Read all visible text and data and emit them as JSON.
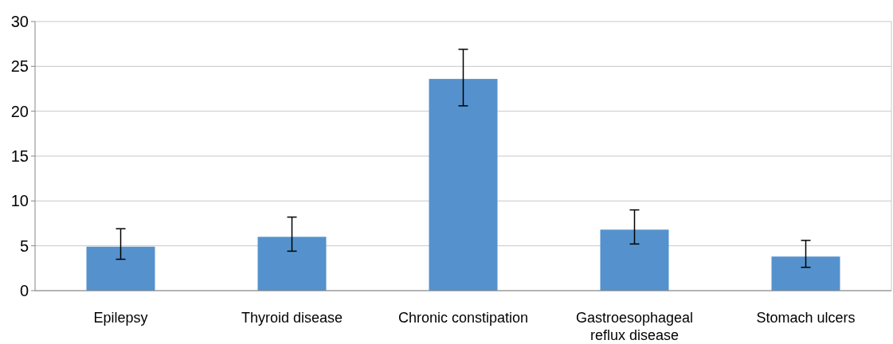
{
  "chart_data": {
    "type": "bar",
    "categories": [
      "Epilepsy",
      "Thyroid disease",
      "Chronic constipation",
      "Gastroesophageal reflux disease",
      "Stomach ulcers"
    ],
    "values": [
      4.9,
      6.0,
      23.6,
      6.8,
      3.8
    ],
    "errors": [
      [
        3.5,
        6.9
      ],
      [
        4.4,
        8.2
      ],
      [
        20.6,
        26.9
      ],
      [
        5.2,
        9.0
      ],
      [
        2.6,
        5.6
      ]
    ],
    "color": "#5592cd",
    "ylim": [
      0,
      30
    ],
    "yticks": [
      0,
      5,
      10,
      15,
      20,
      25,
      30
    ],
    "grid": "y"
  }
}
